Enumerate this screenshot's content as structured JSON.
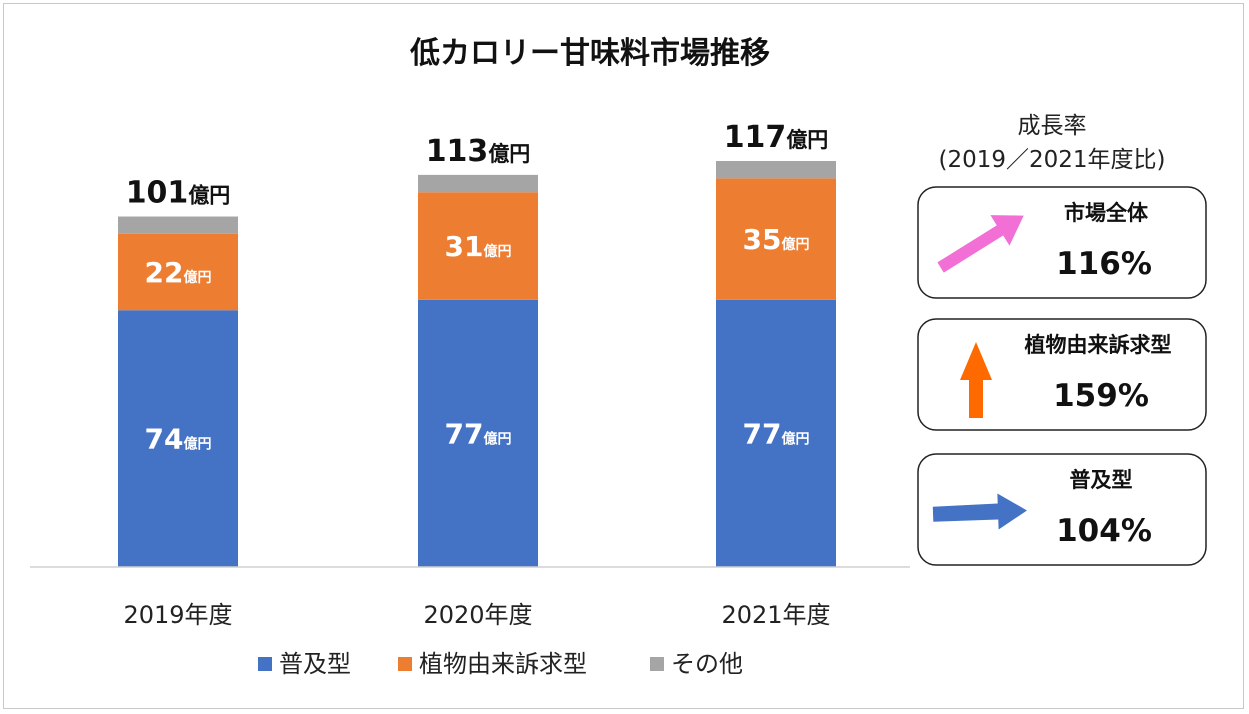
{
  "chart_data": {
    "type": "bar",
    "stacked": true,
    "title": "低カロリー甘味料市場推移",
    "categories": [
      "2019年度",
      "2020年度",
      "2021年度"
    ],
    "series": [
      {
        "name": "普及型",
        "color": "#4472c4",
        "values": [
          74,
          77,
          77
        ],
        "labels": [
          "74",
          "77",
          "77"
        ]
      },
      {
        "name": "植物由来訴求型",
        "color": "#ed7d31",
        "values": [
          22,
          31,
          35
        ],
        "labels": [
          "22",
          "31",
          "35"
        ]
      },
      {
        "name": "その他",
        "color": "#a5a5a5",
        "values": [
          5,
          5,
          5
        ]
      }
    ],
    "totals": [
      101,
      113,
      117
    ],
    "total_labels": [
      "101",
      "113",
      "117"
    ],
    "unit": "億円",
    "legend_position": "bottom",
    "grid": false
  },
  "growth": {
    "header_line1": "成長率",
    "header_line2": "(2019／2021年度比)",
    "cards": [
      {
        "label": "市場全体",
        "value": "116%",
        "arrow": "diagonal-up-arrow",
        "color": "#f26fd6"
      },
      {
        "label": "植物由来訴求型",
        "value": "159%",
        "arrow": "up-arrow",
        "color": "#ff6a00"
      },
      {
        "label": "普及型",
        "value": "104%",
        "arrow": "right-arrow",
        "color": "#4472c4"
      }
    ]
  }
}
